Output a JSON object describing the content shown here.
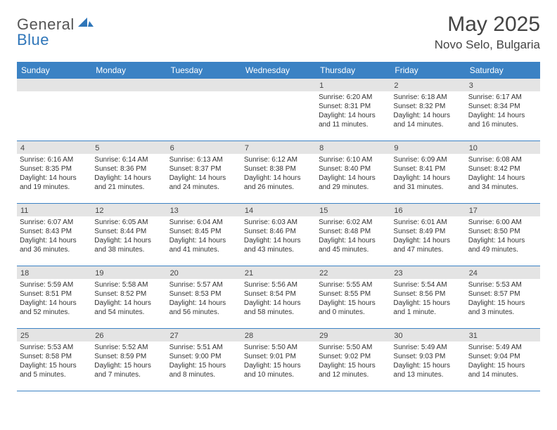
{
  "logo": {
    "general": "General",
    "blue": "Blue"
  },
  "title": "May 2025",
  "location": "Novo Selo, Bulgaria",
  "colors": {
    "header_bar": "#3b82c4",
    "daynum_bg": "#e4e4e4",
    "rule": "#3b82c4",
    "logo_blue": "#2f76b9"
  },
  "weekdays": [
    "Sunday",
    "Monday",
    "Tuesday",
    "Wednesday",
    "Thursday",
    "Friday",
    "Saturday"
  ],
  "weeks": [
    [
      {
        "n": "",
        "sr": "",
        "ss": "",
        "dl": ""
      },
      {
        "n": "",
        "sr": "",
        "ss": "",
        "dl": ""
      },
      {
        "n": "",
        "sr": "",
        "ss": "",
        "dl": ""
      },
      {
        "n": "",
        "sr": "",
        "ss": "",
        "dl": ""
      },
      {
        "n": "1",
        "sr": "Sunrise: 6:20 AM",
        "ss": "Sunset: 8:31 PM",
        "dl": "Daylight: 14 hours and 11 minutes."
      },
      {
        "n": "2",
        "sr": "Sunrise: 6:18 AM",
        "ss": "Sunset: 8:32 PM",
        "dl": "Daylight: 14 hours and 14 minutes."
      },
      {
        "n": "3",
        "sr": "Sunrise: 6:17 AM",
        "ss": "Sunset: 8:34 PM",
        "dl": "Daylight: 14 hours and 16 minutes."
      }
    ],
    [
      {
        "n": "4",
        "sr": "Sunrise: 6:16 AM",
        "ss": "Sunset: 8:35 PM",
        "dl": "Daylight: 14 hours and 19 minutes."
      },
      {
        "n": "5",
        "sr": "Sunrise: 6:14 AM",
        "ss": "Sunset: 8:36 PM",
        "dl": "Daylight: 14 hours and 21 minutes."
      },
      {
        "n": "6",
        "sr": "Sunrise: 6:13 AM",
        "ss": "Sunset: 8:37 PM",
        "dl": "Daylight: 14 hours and 24 minutes."
      },
      {
        "n": "7",
        "sr": "Sunrise: 6:12 AM",
        "ss": "Sunset: 8:38 PM",
        "dl": "Daylight: 14 hours and 26 minutes."
      },
      {
        "n": "8",
        "sr": "Sunrise: 6:10 AM",
        "ss": "Sunset: 8:40 PM",
        "dl": "Daylight: 14 hours and 29 minutes."
      },
      {
        "n": "9",
        "sr": "Sunrise: 6:09 AM",
        "ss": "Sunset: 8:41 PM",
        "dl": "Daylight: 14 hours and 31 minutes."
      },
      {
        "n": "10",
        "sr": "Sunrise: 6:08 AM",
        "ss": "Sunset: 8:42 PM",
        "dl": "Daylight: 14 hours and 34 minutes."
      }
    ],
    [
      {
        "n": "11",
        "sr": "Sunrise: 6:07 AM",
        "ss": "Sunset: 8:43 PM",
        "dl": "Daylight: 14 hours and 36 minutes."
      },
      {
        "n": "12",
        "sr": "Sunrise: 6:05 AM",
        "ss": "Sunset: 8:44 PM",
        "dl": "Daylight: 14 hours and 38 minutes."
      },
      {
        "n": "13",
        "sr": "Sunrise: 6:04 AM",
        "ss": "Sunset: 8:45 PM",
        "dl": "Daylight: 14 hours and 41 minutes."
      },
      {
        "n": "14",
        "sr": "Sunrise: 6:03 AM",
        "ss": "Sunset: 8:46 PM",
        "dl": "Daylight: 14 hours and 43 minutes."
      },
      {
        "n": "15",
        "sr": "Sunrise: 6:02 AM",
        "ss": "Sunset: 8:48 PM",
        "dl": "Daylight: 14 hours and 45 minutes."
      },
      {
        "n": "16",
        "sr": "Sunrise: 6:01 AM",
        "ss": "Sunset: 8:49 PM",
        "dl": "Daylight: 14 hours and 47 minutes."
      },
      {
        "n": "17",
        "sr": "Sunrise: 6:00 AM",
        "ss": "Sunset: 8:50 PM",
        "dl": "Daylight: 14 hours and 49 minutes."
      }
    ],
    [
      {
        "n": "18",
        "sr": "Sunrise: 5:59 AM",
        "ss": "Sunset: 8:51 PM",
        "dl": "Daylight: 14 hours and 52 minutes."
      },
      {
        "n": "19",
        "sr": "Sunrise: 5:58 AM",
        "ss": "Sunset: 8:52 PM",
        "dl": "Daylight: 14 hours and 54 minutes."
      },
      {
        "n": "20",
        "sr": "Sunrise: 5:57 AM",
        "ss": "Sunset: 8:53 PM",
        "dl": "Daylight: 14 hours and 56 minutes."
      },
      {
        "n": "21",
        "sr": "Sunrise: 5:56 AM",
        "ss": "Sunset: 8:54 PM",
        "dl": "Daylight: 14 hours and 58 minutes."
      },
      {
        "n": "22",
        "sr": "Sunrise: 5:55 AM",
        "ss": "Sunset: 8:55 PM",
        "dl": "Daylight: 15 hours and 0 minutes."
      },
      {
        "n": "23",
        "sr": "Sunrise: 5:54 AM",
        "ss": "Sunset: 8:56 PM",
        "dl": "Daylight: 15 hours and 1 minute."
      },
      {
        "n": "24",
        "sr": "Sunrise: 5:53 AM",
        "ss": "Sunset: 8:57 PM",
        "dl": "Daylight: 15 hours and 3 minutes."
      }
    ],
    [
      {
        "n": "25",
        "sr": "Sunrise: 5:53 AM",
        "ss": "Sunset: 8:58 PM",
        "dl": "Daylight: 15 hours and 5 minutes."
      },
      {
        "n": "26",
        "sr": "Sunrise: 5:52 AM",
        "ss": "Sunset: 8:59 PM",
        "dl": "Daylight: 15 hours and 7 minutes."
      },
      {
        "n": "27",
        "sr": "Sunrise: 5:51 AM",
        "ss": "Sunset: 9:00 PM",
        "dl": "Daylight: 15 hours and 8 minutes."
      },
      {
        "n": "28",
        "sr": "Sunrise: 5:50 AM",
        "ss": "Sunset: 9:01 PM",
        "dl": "Daylight: 15 hours and 10 minutes."
      },
      {
        "n": "29",
        "sr": "Sunrise: 5:50 AM",
        "ss": "Sunset: 9:02 PM",
        "dl": "Daylight: 15 hours and 12 minutes."
      },
      {
        "n": "30",
        "sr": "Sunrise: 5:49 AM",
        "ss": "Sunset: 9:03 PM",
        "dl": "Daylight: 15 hours and 13 minutes."
      },
      {
        "n": "31",
        "sr": "Sunrise: 5:49 AM",
        "ss": "Sunset: 9:04 PM",
        "dl": "Daylight: 15 hours and 14 minutes."
      }
    ]
  ]
}
